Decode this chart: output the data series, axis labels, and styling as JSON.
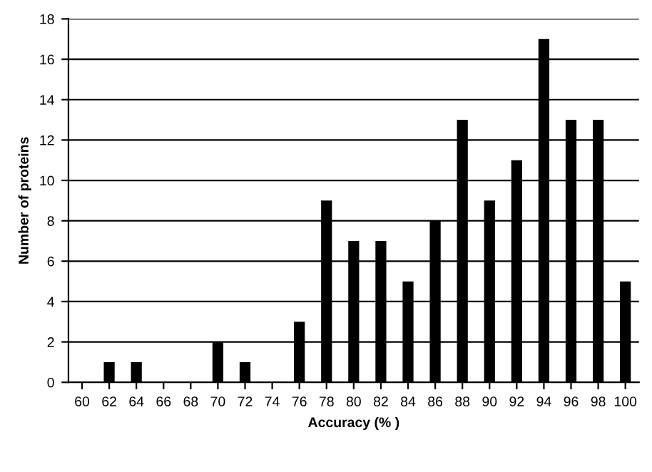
{
  "chart_data": {
    "type": "bar",
    "xlabel": "Accuracy (% )",
    "ylabel": "Number of proteins",
    "categories": [
      "60",
      "62",
      "64",
      "66",
      "68",
      "70",
      "72",
      "74",
      "76",
      "78",
      "80",
      "82",
      "84",
      "86",
      "88",
      "90",
      "92",
      "94",
      "96",
      "98",
      "100"
    ],
    "values": [
      0,
      1,
      1,
      0,
      0,
      2,
      1,
      0,
      3,
      9,
      7,
      7,
      5,
      8,
      13,
      9,
      11,
      17,
      13,
      13,
      5
    ],
    "color": "#000000",
    "ylim": [
      0,
      18
    ],
    "yticks": [
      0,
      2,
      4,
      6,
      8,
      10,
      12,
      14,
      16,
      18
    ],
    "grid": "y",
    "legend": false
  }
}
